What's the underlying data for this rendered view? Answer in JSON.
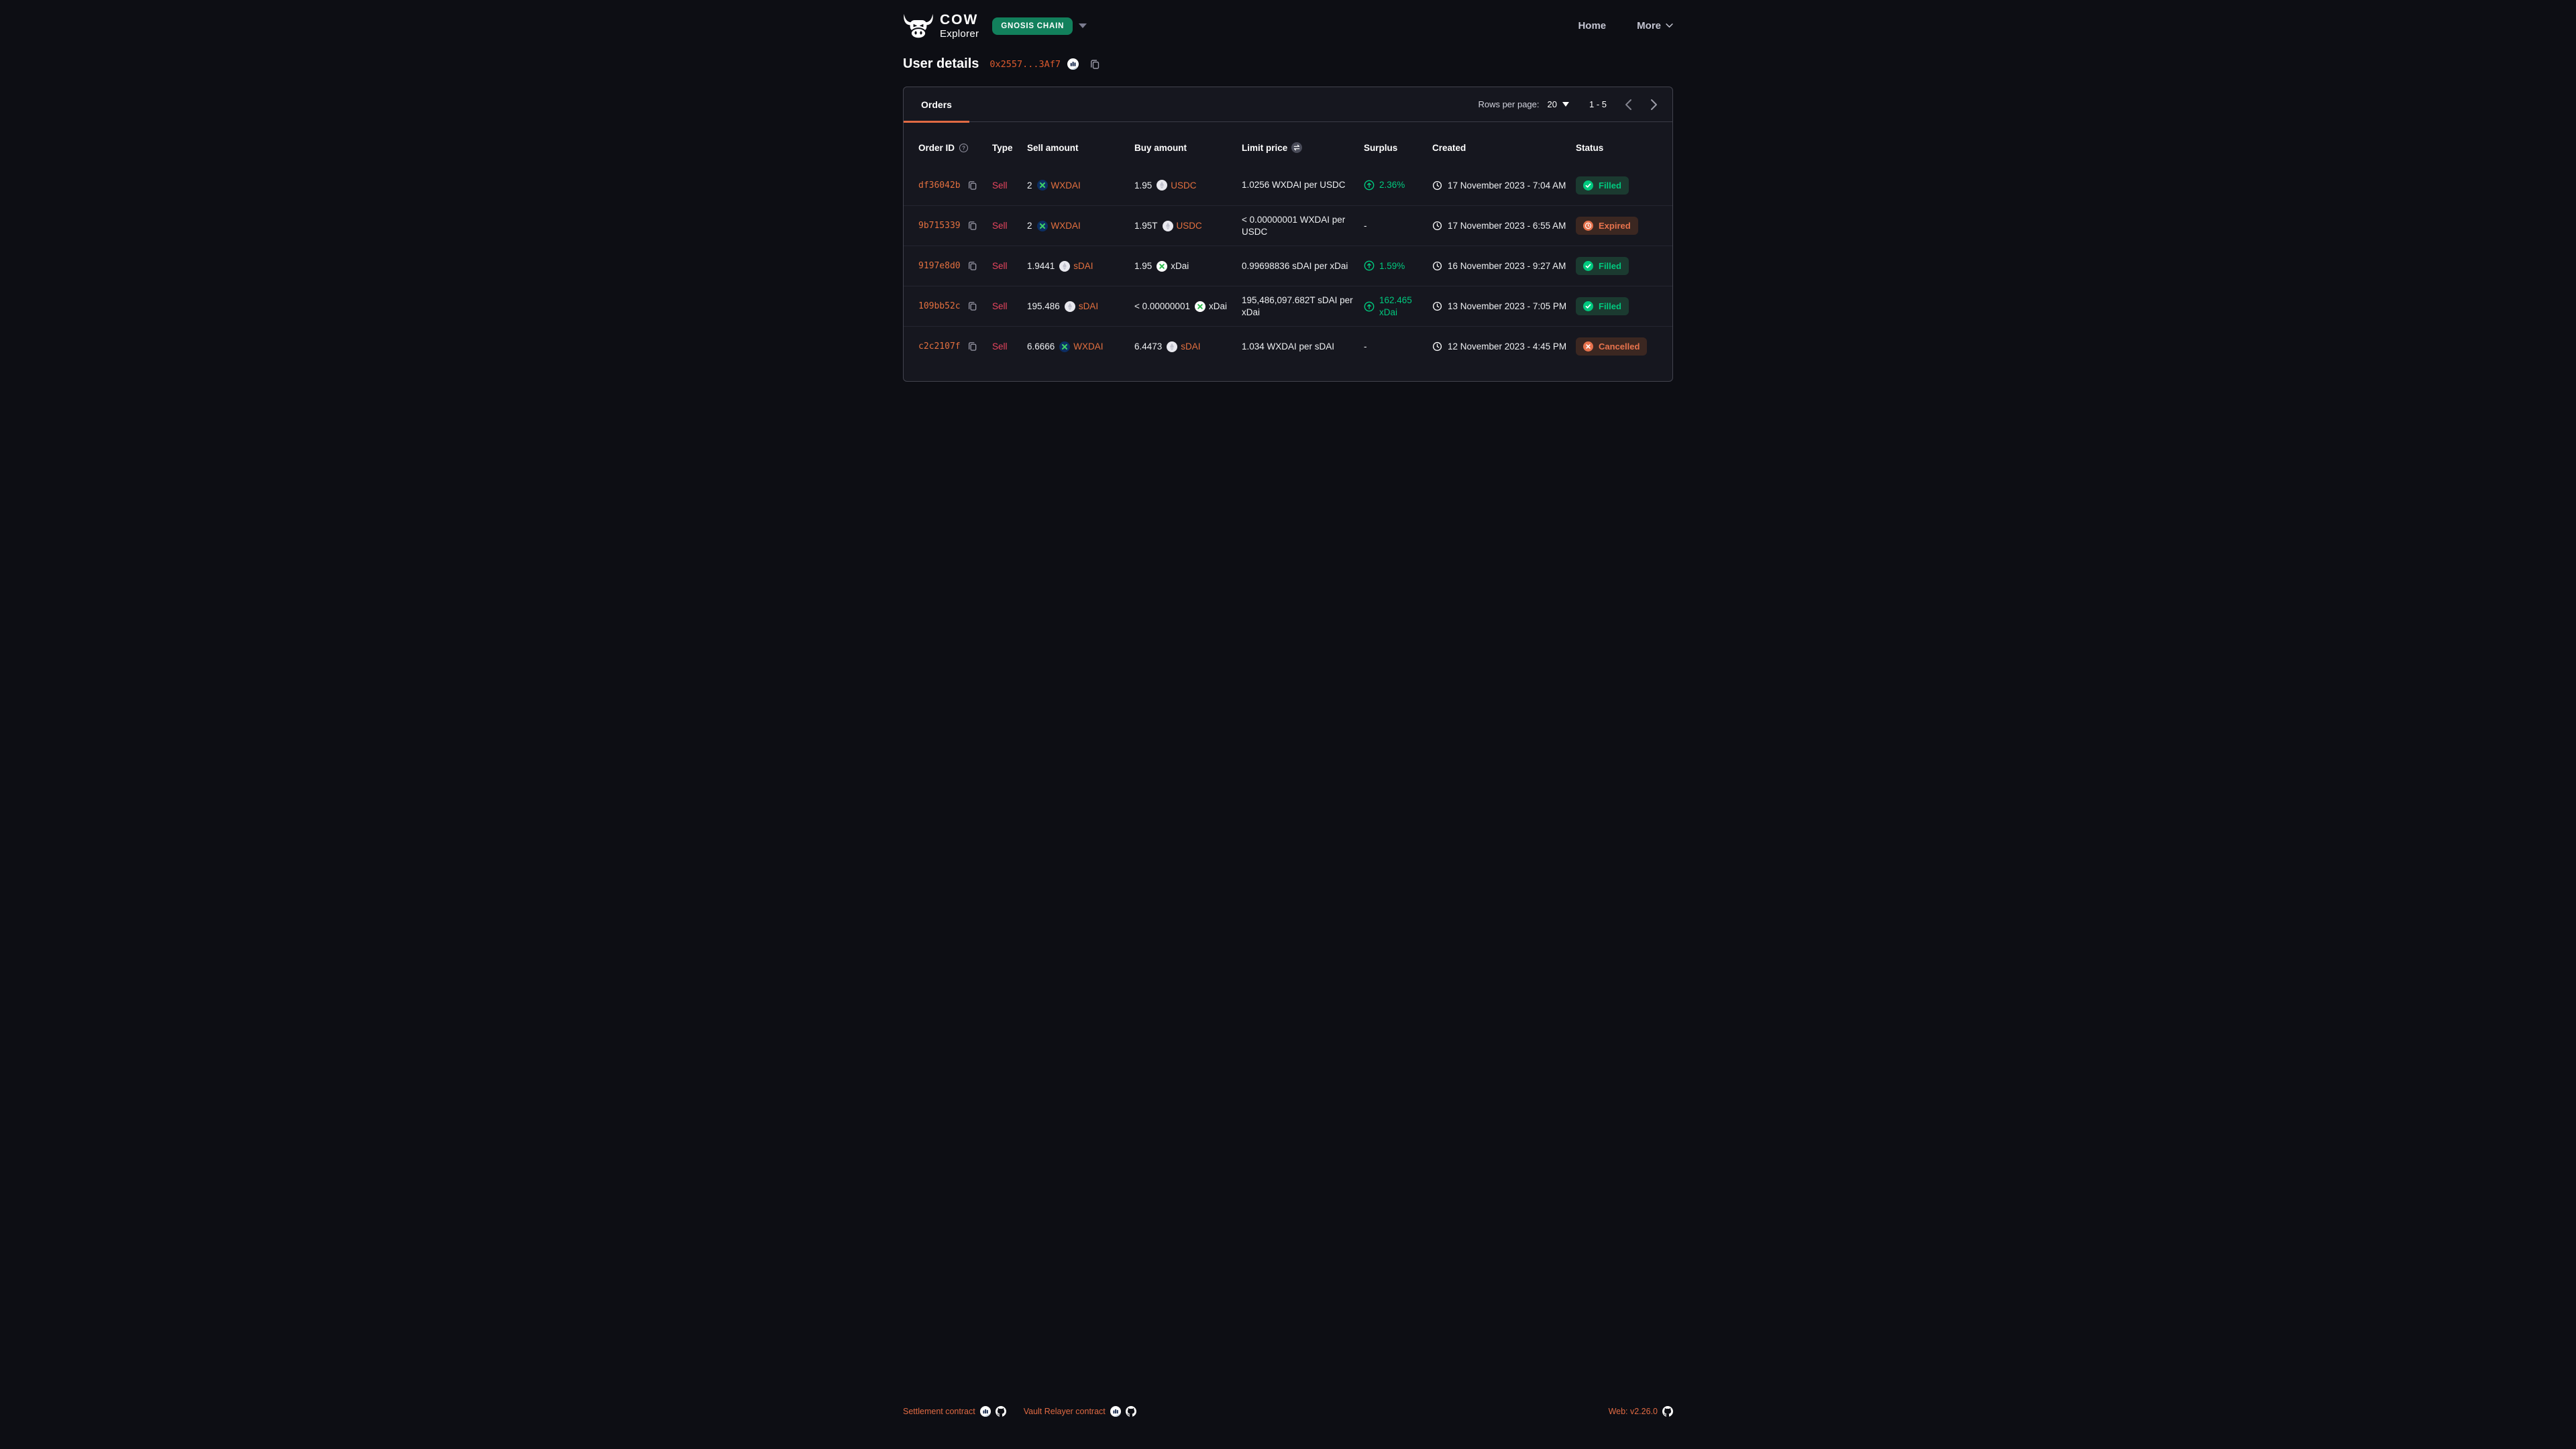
{
  "colors": {
    "accent_orange": "#ED6834",
    "sell_red": "#E8465F",
    "green": "#00C97E",
    "chain_pill_green": "#12805C",
    "filled_badge_bg": "#1B3A30",
    "warn_badge_bg": "#3B2721",
    "warn_text": "#E8734D",
    "page_bg": "#0d0e14",
    "panel_bg": "#16171f"
  },
  "header": {
    "logo_title": "COW",
    "logo_subtitle": "Explorer",
    "network_badge": "GNOSIS CHAIN",
    "nav": [
      {
        "label": "Home"
      },
      {
        "label": "More"
      }
    ]
  },
  "page": {
    "title": "User details",
    "address": "0x2557...3Af7"
  },
  "orders_panel": {
    "tab_label": "Orders",
    "pagination": {
      "rows_label": "Rows per page:",
      "rows_value": "20",
      "range": "1 - 5"
    },
    "table": {
      "columns": [
        {
          "label": "Order ID",
          "icon": "help-icon"
        },
        {
          "label": "Type"
        },
        {
          "label": "Sell amount"
        },
        {
          "label": "Buy amount"
        },
        {
          "label": "Limit price",
          "icon": "swap-icon"
        },
        {
          "label": "Surplus"
        },
        {
          "label": "Created"
        },
        {
          "label": "Status"
        }
      ],
      "rows": [
        {
          "order_id": "df36042b",
          "type": "Sell",
          "sell": {
            "amount": "2",
            "token": "WXDAI",
            "icon": "wxdai-token-icon",
            "link": true
          },
          "buy": {
            "amount": "1.95",
            "token": "USDC",
            "icon": "generic-token-icon",
            "link": true
          },
          "limit_price": "1.0256 WXDAI per USDC",
          "surplus": "2.36%",
          "created": "17 November 2023 - 7:04 AM",
          "status": "Filled"
        },
        {
          "order_id": "9b715339",
          "type": "Sell",
          "sell": {
            "amount": "2",
            "token": "WXDAI",
            "icon": "wxdai-token-icon",
            "link": true
          },
          "buy": {
            "amount": "1.95T",
            "token": "USDC",
            "icon": "generic-token-icon",
            "link": true
          },
          "limit_price": "< 0.00000001 WXDAI per USDC",
          "surplus": "-",
          "created": "17 November 2023 - 6:55 AM",
          "status": "Expired"
        },
        {
          "order_id": "9197e8d0",
          "type": "Sell",
          "sell": {
            "amount": "1.9441",
            "token": "sDAI",
            "icon": "generic-token-icon",
            "link": true
          },
          "buy": {
            "amount": "1.95",
            "token": "xDai",
            "icon": "xdai-token-icon",
            "link": false
          },
          "limit_price": "0.99698836 sDAI per xDai",
          "surplus": "1.59%",
          "created": "16 November 2023 - 9:27 AM",
          "status": "Filled"
        },
        {
          "order_id": "109bb52c",
          "type": "Sell",
          "sell": {
            "amount": "195.486",
            "token": "sDAI",
            "icon": "generic-token-icon",
            "link": true
          },
          "buy": {
            "amount": "< 0.00000001",
            "token": "xDai",
            "icon": "xdai-token-icon",
            "link": false
          },
          "limit_price": "195,486,097.682T sDAI per xDai",
          "surplus": "162.465 xDai",
          "created": "13 November 2023 - 7:05 PM",
          "status": "Filled"
        },
        {
          "order_id": "c2c2107f",
          "type": "Sell",
          "sell": {
            "amount": "6.6666",
            "token": "WXDAI",
            "icon": "wxdai-token-icon",
            "link": true
          },
          "buy": {
            "amount": "6.4473",
            "token": "sDAI",
            "icon": "generic-token-icon",
            "link": true
          },
          "limit_price": "1.034 WXDAI per sDAI",
          "surplus": "-",
          "created": "12 November 2023 - 4:45 PM",
          "status": "Cancelled"
        }
      ]
    }
  },
  "footer": {
    "settlement_label": "Settlement contract",
    "vault_label": "Vault Relayer contract",
    "web_version": "Web: v2.26.0"
  }
}
